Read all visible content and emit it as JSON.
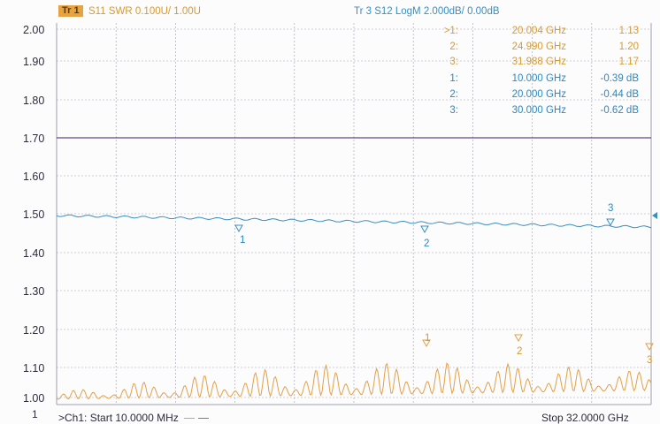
{
  "header": {
    "trace1_badge": "Tr 1",
    "trace1_desc": "S11 SWR 0.100U/  1.00U",
    "trace3_desc": "Tr 3  S12 LogM 2.000dB/  0.00dB"
  },
  "y_ticks": [
    "2.00",
    "1.90",
    "1.80",
    "1.70",
    "1.60",
    "1.50",
    "1.40",
    "1.30",
    "1.20",
    "1.10",
    "1.00"
  ],
  "markers_swr": [
    {
      "id": ">1:",
      "x": "20.004 GHz",
      "value": "1.13"
    },
    {
      "id": "2:",
      "x": "24.990 GHz",
      "value": "1.20"
    },
    {
      "id": "3:",
      "x": "31.988 GHz",
      "value": "1.17"
    }
  ],
  "markers_logm": [
    {
      "id": "1:",
      "x": "10.000 GHz",
      "value": "-0.39 dB"
    },
    {
      "id": "2:",
      "x": "20.000 GHz",
      "value": "-0.44 dB"
    },
    {
      "id": "3:",
      "x": "30.000 GHz",
      "value": "-0.62 dB"
    }
  ],
  "footer": {
    "channel_number": "1",
    "start": ">Ch1: Start  10.0000 MHz",
    "stop": "Stop  32.0000 GHz"
  },
  "colors": {
    "trace_swr": "#e2a047",
    "trace_logm": "#3a8ec0",
    "grid": "#a0a0b0",
    "ref_line": "#5a4a8a"
  },
  "marker_labels": [
    "1",
    "2",
    "3"
  ]
}
